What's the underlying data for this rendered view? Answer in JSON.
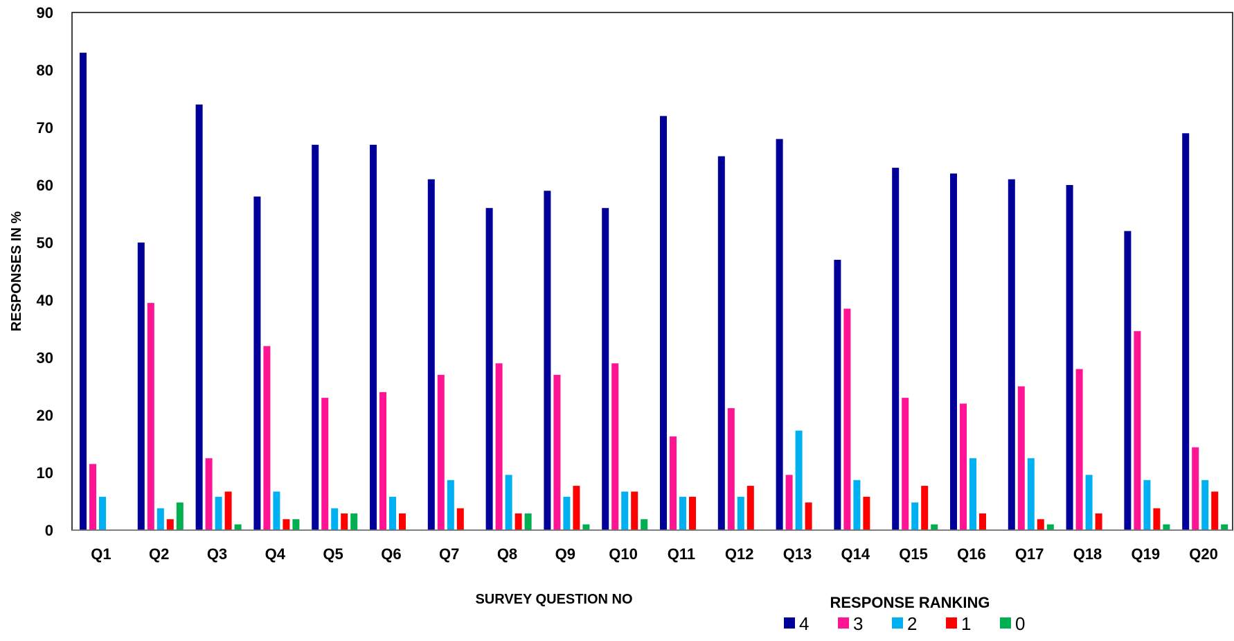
{
  "chart_data": {
    "type": "bar",
    "title": "",
    "xlabel": "SURVEY QUESTION NO",
    "ylabel": "RESPONSES IN %",
    "ylim": [
      0,
      90
    ],
    "yticks": [
      0,
      10,
      20,
      30,
      40,
      50,
      60,
      70,
      80,
      90
    ],
    "grid": false,
    "legend_title": "RESPONSE RANKING",
    "legend_placement": "bottom-right",
    "categories": [
      "Q1",
      "Q2",
      "Q3",
      "Q4",
      "Q5",
      "Q6",
      "Q7",
      "Q8",
      "Q9",
      "Q10",
      "Q11",
      "Q12",
      "Q13",
      "Q14",
      "Q15",
      "Q16",
      "Q17",
      "Q18",
      "Q19",
      "Q20"
    ],
    "series": [
      {
        "name": "4",
        "color": "#000099",
        "values": [
          83,
          50,
          74,
          58,
          67,
          67,
          61,
          56,
          59,
          56,
          72,
          65,
          68,
          47,
          63,
          62,
          61,
          60,
          52,
          69
        ]
      },
      {
        "name": "3",
        "color": "#FF1493",
        "values": [
          11.5,
          39.5,
          12.5,
          32,
          23,
          24,
          27,
          29,
          27,
          29,
          16.3,
          21.2,
          9.6,
          38.5,
          23,
          22,
          25,
          28,
          34.6,
          14.4
        ]
      },
      {
        "name": "2",
        "color": "#00B0F0",
        "values": [
          5.8,
          3.8,
          5.8,
          6.7,
          3.8,
          5.8,
          8.7,
          9.6,
          5.8,
          6.7,
          5.8,
          5.8,
          17.3,
          8.7,
          4.8,
          12.5,
          12.5,
          9.6,
          8.7,
          8.7
        ]
      },
      {
        "name": "1",
        "color": "#FF0000",
        "values": [
          0,
          1.9,
          6.7,
          1.9,
          2.9,
          2.9,
          3.8,
          2.9,
          7.7,
          6.7,
          5.8,
          7.7,
          4.8,
          5.8,
          7.7,
          2.9,
          1.9,
          2.9,
          3.8,
          6.7
        ]
      },
      {
        "name": "0",
        "color": "#00B050",
        "values": [
          0,
          4.8,
          1,
          1.9,
          2.9,
          0,
          0,
          2.9,
          1,
          1.9,
          0,
          0,
          0,
          0,
          1,
          0,
          1,
          0,
          1,
          1
        ]
      }
    ]
  }
}
